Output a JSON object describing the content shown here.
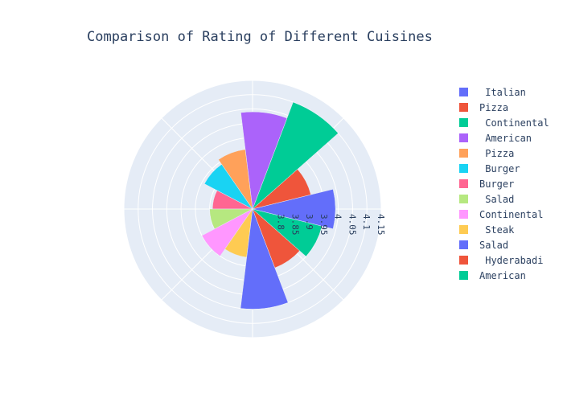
{
  "chart_data": {
    "type": "barpolar",
    "title": "Comparison of Rating of Different Cuisines",
    "radial_range": [
      3.7,
      4.15
    ],
    "radial_ticks": [
      "3.8",
      "3.85",
      "3.9",
      "3.95",
      "4",
      "4.05",
      "4.1",
      "4.15"
    ],
    "grid": true,
    "legend_position": "right",
    "series": [
      {
        "name": " Italian",
        "value": 3.99,
        "color": "#636efa"
      },
      {
        "name": "Pizza",
        "value": 3.91,
        "color": "#EF553B"
      },
      {
        "name": " Continental",
        "value": 4.1,
        "color": "#00cc96"
      },
      {
        "name": " American",
        "value": 4.04,
        "color": "#ab63fa"
      },
      {
        "name": " Pizza",
        "value": 3.91,
        "color": "#FFA15A"
      },
      {
        "name": " Burger",
        "value": 3.89,
        "color": "#19d3f3"
      },
      {
        "name": "Burger",
        "value": 3.84,
        "color": "#FF6692"
      },
      {
        "name": " Salad",
        "value": 3.85,
        "color": "#B6E880"
      },
      {
        "name": "Continental",
        "value": 3.9,
        "color": "#FF97FF"
      },
      {
        "name": " Steak",
        "value": 3.87,
        "color": "#FECB52"
      },
      {
        "name": "Salad",
        "value": 4.05,
        "color": "#636efa"
      },
      {
        "name": " Hyderabadi",
        "value": 3.92,
        "color": "#EF553B"
      },
      {
        "name": "American",
        "value": 3.95,
        "color": "#00cc96"
      }
    ]
  }
}
